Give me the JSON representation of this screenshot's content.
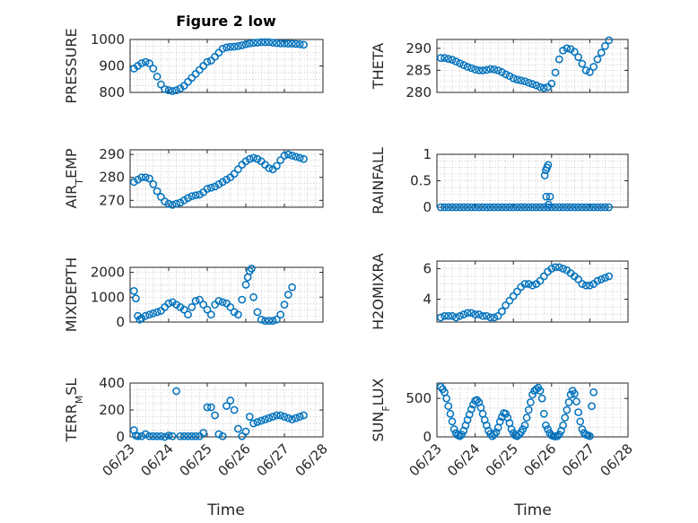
{
  "figure": {
    "title": "Figure 2 low",
    "xlabel": "Time",
    "colors": {
      "series": "#0072bd",
      "axes": "#262626",
      "grid": "#bdbdbd"
    }
  },
  "chart_data": [
    {
      "type": "scatter",
      "title": "Figure 2 low",
      "ylabel": "PRESSURE",
      "xlabel": "",
      "xlim": [
        0,
        5
      ],
      "ylim": [
        800,
        1000
      ],
      "yticks": [
        800,
        900,
        1000
      ],
      "xticks": [
        0,
        1,
        2,
        3,
        4,
        5
      ],
      "xticklabels": [
        "06/23",
        "06/24",
        "06/25",
        "06/26",
        "06/27",
        "06/28"
      ],
      "show_xticklabels": false,
      "grid": true,
      "x": [
        0.1,
        0.2,
        0.3,
        0.4,
        0.5,
        0.6,
        0.7,
        0.8,
        0.9,
        1.0,
        1.1,
        1.2,
        1.3,
        1.4,
        1.5,
        1.6,
        1.7,
        1.8,
        1.9,
        2.0,
        2.1,
        2.2,
        2.3,
        2.4,
        2.5,
        2.6,
        2.7,
        2.8,
        2.9,
        3.0,
        3.1,
        3.2,
        3.3,
        3.4,
        3.5,
        3.6,
        3.7,
        3.8,
        3.9,
        4.0,
        4.1,
        4.2,
        4.3,
        4.4,
        4.5
      ],
      "y": [
        890,
        900,
        910,
        915,
        910,
        890,
        860,
        830,
        812,
        808,
        805,
        808,
        815,
        825,
        840,
        855,
        870,
        885,
        900,
        915,
        920,
        935,
        950,
        965,
        970,
        972,
        973,
        975,
        978,
        982,
        985,
        987,
        988,
        990,
        990,
        990,
        988,
        986,
        985,
        985,
        984,
        984,
        983,
        982,
        980
      ]
    },
    {
      "type": "scatter",
      "title": "",
      "ylabel": "THETA",
      "xlabel": "",
      "xlim": [
        0,
        5
      ],
      "ylim": [
        280,
        292
      ],
      "yticks": [
        280,
        285,
        290
      ],
      "xticks": [
        0,
        1,
        2,
        3,
        4,
        5
      ],
      "xticklabels": [
        "06/23",
        "06/24",
        "06/25",
        "06/26",
        "06/27",
        "06/28"
      ],
      "show_xticklabels": false,
      "grid": true,
      "x": [
        0.1,
        0.2,
        0.3,
        0.4,
        0.5,
        0.6,
        0.7,
        0.8,
        0.9,
        1.0,
        1.1,
        1.2,
        1.3,
        1.4,
        1.5,
        1.6,
        1.7,
        1.8,
        1.9,
        2.0,
        2.1,
        2.2,
        2.3,
        2.4,
        2.5,
        2.6,
        2.7,
        2.8,
        2.9,
        3.0,
        3.1,
        3.2,
        3.3,
        3.4,
        3.5,
        3.6,
        3.7,
        3.8,
        3.9,
        4.0,
        4.1,
        4.2,
        4.3,
        4.4,
        4.5
      ],
      "y": [
        287.8,
        287.8,
        287.6,
        287.4,
        287.0,
        286.6,
        286.2,
        285.8,
        285.5,
        285.2,
        285.0,
        285.0,
        285.1,
        285.3,
        285.2,
        285.0,
        284.6,
        284.1,
        283.7,
        283.2,
        282.9,
        282.7,
        282.5,
        282.2,
        281.9,
        281.6,
        281.2,
        281.0,
        281.2,
        282.0,
        284.5,
        287.5,
        289.5,
        290.0,
        289.8,
        289.2,
        288.0,
        286.5,
        285.0,
        284.6,
        285.8,
        287.5,
        289.0,
        290.5,
        291.8
      ]
    },
    {
      "type": "scatter",
      "title": "",
      "ylabel": "AIR_TEMP",
      "xlabel": "",
      "xlim": [
        0,
        5
      ],
      "ylim": [
        267,
        292
      ],
      "yticks": [
        270,
        280,
        290
      ],
      "xticks": [
        0,
        1,
        2,
        3,
        4,
        5
      ],
      "xticklabels": [
        "06/23",
        "06/24",
        "06/25",
        "06/26",
        "06/27",
        "06/28"
      ],
      "show_xticklabels": false,
      "grid": true,
      "x": [
        0.1,
        0.2,
        0.3,
        0.4,
        0.5,
        0.6,
        0.7,
        0.8,
        0.9,
        1.0,
        1.1,
        1.2,
        1.3,
        1.4,
        1.5,
        1.6,
        1.7,
        1.8,
        1.9,
        2.0,
        2.1,
        2.2,
        2.3,
        2.4,
        2.5,
        2.6,
        2.7,
        2.8,
        2.9,
        3.0,
        3.1,
        3.2,
        3.3,
        3.4,
        3.5,
        3.6,
        3.7,
        3.8,
        3.9,
        4.0,
        4.1,
        4.2,
        4.3,
        4.4,
        4.5
      ],
      "y": [
        278.0,
        279.0,
        280.0,
        280.0,
        279.5,
        277.0,
        274.0,
        271.5,
        269.5,
        268.5,
        268.0,
        268.5,
        269.0,
        270.0,
        271.0,
        271.8,
        272.2,
        272.5,
        273.5,
        275.0,
        275.5,
        276.0,
        277.0,
        278.0,
        279.0,
        280.0,
        281.5,
        283.5,
        285.5,
        287.0,
        288.0,
        288.5,
        288.0,
        287.0,
        285.5,
        284.0,
        283.5,
        285.0,
        287.5,
        289.5,
        290.0,
        289.5,
        289.0,
        288.5,
        288.0
      ]
    },
    {
      "type": "scatter",
      "title": "",
      "ylabel": "RAINFALL",
      "xlabel": "",
      "xlim": [
        0,
        5
      ],
      "ylim": [
        0,
        1
      ],
      "yticks": [
        0,
        0.5,
        1
      ],
      "xticks": [
        0,
        1,
        2,
        3,
        4,
        5
      ],
      "xticklabels": [
        "06/23",
        "06/24",
        "06/25",
        "06/26",
        "06/27",
        "06/28"
      ],
      "show_xticklabels": false,
      "grid": true,
      "x": [
        0.1,
        0.2,
        0.3,
        0.4,
        0.5,
        0.6,
        0.7,
        0.8,
        0.9,
        1.0,
        1.1,
        1.2,
        1.3,
        1.4,
        1.5,
        1.6,
        1.7,
        1.8,
        1.9,
        2.0,
        2.1,
        2.2,
        2.3,
        2.4,
        2.5,
        2.6,
        2.7,
        2.8,
        2.9,
        3.0,
        3.1,
        3.2,
        3.3,
        3.4,
        3.5,
        3.6,
        3.7,
        3.8,
        3.9,
        4.0,
        4.1,
        4.2,
        4.3,
        4.4,
        4.5,
        2.82,
        2.85,
        2.88,
        2.91,
        2.86,
        2.96,
        2.92
      ],
      "y": [
        0,
        0,
        0,
        0,
        0,
        0,
        0,
        0,
        0,
        0,
        0,
        0,
        0,
        0,
        0,
        0,
        0,
        0,
        0,
        0,
        0,
        0,
        0,
        0,
        0,
        0,
        0,
        0,
        0,
        0,
        0,
        0,
        0,
        0,
        0,
        0,
        0,
        0,
        0,
        0,
        0,
        0,
        0,
        0,
        0,
        0.6,
        0.7,
        0.75,
        0.8,
        0.2,
        0.2,
        0.05
      ]
    },
    {
      "type": "scatter",
      "title": "",
      "ylabel": "MIXDEPTH",
      "xlabel": "",
      "xlim": [
        0,
        5
      ],
      "ylim": [
        0,
        2200
      ],
      "yticks": [
        0,
        1000,
        2000
      ],
      "xticks": [
        0,
        1,
        2,
        3,
        4,
        5
      ],
      "xticklabels": [
        "06/23",
        "06/24",
        "06/25",
        "06/26",
        "06/27",
        "06/28"
      ],
      "show_xticklabels": false,
      "grid": true,
      "x": [
        0.1,
        0.15,
        0.2,
        0.25,
        0.3,
        0.4,
        0.5,
        0.6,
        0.7,
        0.8,
        0.9,
        1.0,
        1.1,
        1.2,
        1.3,
        1.4,
        1.5,
        1.6,
        1.7,
        1.8,
        1.9,
        2.0,
        2.1,
        2.2,
        2.3,
        2.4,
        2.5,
        2.6,
        2.7,
        2.8,
        2.9,
        3.0,
        3.05,
        3.1,
        3.15,
        3.2,
        3.3,
        3.4,
        3.5,
        3.6,
        3.7,
        3.8,
        3.9,
        4.0,
        4.1,
        4.2
      ],
      "y": [
        1250,
        950,
        250,
        100,
        150,
        250,
        300,
        350,
        400,
        450,
        600,
        750,
        800,
        700,
        600,
        500,
        300,
        600,
        850,
        900,
        700,
        500,
        300,
        700,
        850,
        800,
        750,
        600,
        400,
        300,
        900,
        1500,
        1800,
        2050,
        2150,
        1000,
        400,
        100,
        50,
        50,
        50,
        100,
        300,
        700,
        1100,
        1400
      ]
    },
    {
      "type": "scatter",
      "title": "",
      "ylabel": "H2OMIXRA",
      "xlabel": "",
      "xlim": [
        0,
        5
      ],
      "ylim": [
        2.5,
        6.5
      ],
      "yticks": [
        4,
        6
      ],
      "xticks": [
        0,
        1,
        2,
        3,
        4,
        5
      ],
      "xticklabels": [
        "06/23",
        "06/24",
        "06/25",
        "06/26",
        "06/27",
        "06/28"
      ],
      "show_xticklabels": false,
      "grid": true,
      "x": [
        0.1,
        0.2,
        0.3,
        0.4,
        0.5,
        0.6,
        0.7,
        0.8,
        0.9,
        1.0,
        1.1,
        1.2,
        1.3,
        1.4,
        1.5,
        1.6,
        1.7,
        1.8,
        1.9,
        2.0,
        2.1,
        2.2,
        2.3,
        2.4,
        2.5,
        2.6,
        2.7,
        2.8,
        2.9,
        3.0,
        3.1,
        3.2,
        3.3,
        3.4,
        3.5,
        3.6,
        3.7,
        3.8,
        3.9,
        4.0,
        4.1,
        4.2,
        4.3,
        4.4,
        4.5
      ],
      "y": [
        2.8,
        2.9,
        2.9,
        2.9,
        2.8,
        2.9,
        3.0,
        3.1,
        3.1,
        3.0,
        3.0,
        2.9,
        2.9,
        2.8,
        2.8,
        2.9,
        3.2,
        3.6,
        3.9,
        4.2,
        4.5,
        4.8,
        5.0,
        5.0,
        4.9,
        5.0,
        5.2,
        5.5,
        5.8,
        6.0,
        6.1,
        6.1,
        6.0,
        5.9,
        5.7,
        5.5,
        5.3,
        5.0,
        4.9,
        4.9,
        5.0,
        5.2,
        5.3,
        5.4,
        5.5
      ]
    },
    {
      "type": "scatter",
      "title": "",
      "ylabel": "TERR_MSL",
      "xlabel": "Time",
      "xlim": [
        0,
        5
      ],
      "ylim": [
        0,
        400
      ],
      "yticks": [
        0,
        200,
        400
      ],
      "xticks": [
        0,
        1,
        2,
        3,
        4,
        5
      ],
      "xticklabels": [
        "06/23",
        "06/24",
        "06/25",
        "06/26",
        "06/27",
        "06/28"
      ],
      "show_xticklabels": true,
      "grid": true,
      "x": [
        0.1,
        0.15,
        0.2,
        0.3,
        0.4,
        0.5,
        0.6,
        0.7,
        0.8,
        0.9,
        1.0,
        1.1,
        1.2,
        1.3,
        1.4,
        1.5,
        1.6,
        1.7,
        1.8,
        1.9,
        2.0,
        2.1,
        2.2,
        2.3,
        2.4,
        2.5,
        2.6,
        2.7,
        2.8,
        2.9,
        3.0,
        3.1,
        3.2,
        3.3,
        3.4,
        3.5,
        3.6,
        3.7,
        3.8,
        3.9,
        4.0,
        4.1,
        4.2,
        4.3,
        4.4,
        4.5
      ],
      "y": [
        50,
        10,
        5,
        5,
        20,
        5,
        5,
        5,
        5,
        0,
        10,
        5,
        340,
        5,
        5,
        5,
        5,
        5,
        5,
        30,
        220,
        220,
        160,
        20,
        5,
        230,
        270,
        200,
        60,
        5,
        40,
        150,
        100,
        110,
        120,
        130,
        140,
        150,
        160,
        160,
        150,
        140,
        130,
        140,
        150,
        160
      ]
    },
    {
      "type": "scatter",
      "title": "",
      "ylabel": "SUN_FLUX",
      "xlabel": "Time",
      "xlim": [
        0,
        5
      ],
      "ylim": [
        0,
        700
      ],
      "yticks": [
        0,
        500
      ],
      "xticks": [
        0,
        1,
        2,
        3,
        4,
        5
      ],
      "xticklabels": [
        "06/23",
        "06/24",
        "06/25",
        "06/26",
        "06/27",
        "06/28"
      ],
      "show_xticklabels": true,
      "grid": true,
      "x": [
        0.1,
        0.15,
        0.2,
        0.25,
        0.3,
        0.35,
        0.4,
        0.45,
        0.5,
        0.55,
        0.6,
        0.65,
        0.7,
        0.75,
        0.8,
        0.85,
        0.9,
        0.95,
        1.0,
        1.05,
        1.1,
        1.15,
        1.2,
        1.25,
        1.3,
        1.35,
        1.4,
        1.45,
        1.5,
        1.55,
        1.6,
        1.65,
        1.7,
        1.75,
        1.8,
        1.85,
        1.9,
        1.95,
        2.0,
        2.05,
        2.1,
        2.15,
        2.2,
        2.25,
        2.3,
        2.35,
        2.4,
        2.45,
        2.5,
        2.55,
        2.6,
        2.65,
        2.7,
        2.75,
        2.8,
        2.85,
        2.9,
        2.95,
        3.0,
        3.05,
        3.1,
        3.15,
        3.2,
        3.25,
        3.3,
        3.35,
        3.4,
        3.45,
        3.5,
        3.55,
        3.6,
        3.65,
        3.7,
        3.75,
        3.8,
        3.85,
        3.9,
        3.95,
        4.0,
        4.05,
        4.1
      ],
      "y": [
        650,
        620,
        580,
        500,
        400,
        300,
        200,
        100,
        50,
        20,
        10,
        30,
        80,
        150,
        220,
        290,
        360,
        420,
        470,
        480,
        450,
        380,
        300,
        220,
        150,
        80,
        40,
        10,
        30,
        60,
        120,
        200,
        260,
        310,
        300,
        250,
        180,
        100,
        50,
        20,
        10,
        30,
        60,
        100,
        150,
        250,
        350,
        450,
        550,
        600,
        620,
        640,
        600,
        500,
        300,
        150,
        100,
        50,
        20,
        10,
        5,
        10,
        30,
        80,
        150,
        250,
        350,
        450,
        550,
        600,
        560,
        460,
        320,
        200,
        100,
        50,
        30,
        20,
        10,
        400,
        580
      ]
    }
  ]
}
